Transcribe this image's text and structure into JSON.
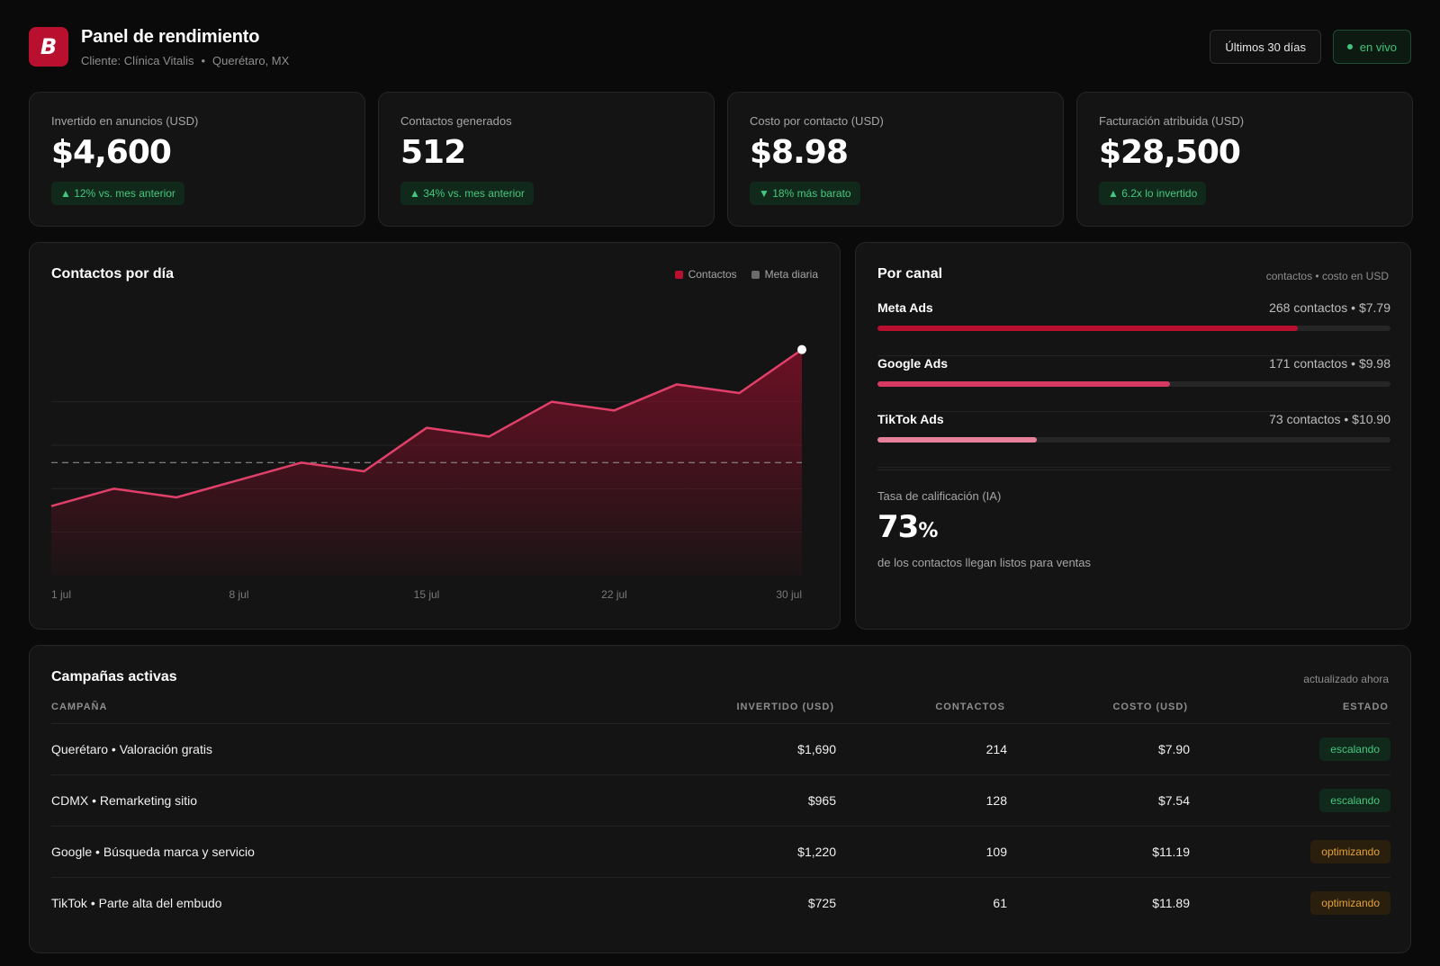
{
  "header": {
    "logo_letter": "B",
    "title": "Panel de rendimiento",
    "client": "Cliente: Clínica Vitalis",
    "location": "Querétaro, MX",
    "range_button": "Últimos 30 días",
    "live_label": "en vivo"
  },
  "kpis": [
    {
      "label": "Invertido en anuncios (USD)",
      "value": "$4,600",
      "badge": "▲ 12% vs. mes anterior"
    },
    {
      "label": "Contactos generados",
      "value": "512",
      "badge": "▲ 34% vs. mes anterior"
    },
    {
      "label": "Costo por contacto (USD)",
      "value": "$8.98",
      "badge": "▼ 18% más barato"
    },
    {
      "label": "Facturación atribuida (USD)",
      "value": "$28,500",
      "badge": "▲ 6.2x lo invertido"
    }
  ],
  "chart": {
    "title": "Contactos por día",
    "legend": [
      {
        "label": "Contactos",
        "color": "#b8102e"
      },
      {
        "label": "Meta diaria",
        "color": "#6b6b6b"
      }
    ]
  },
  "chart_data": {
    "type": "area",
    "title": "Contactos por día",
    "x": [
      "1 jul",
      "3 jul",
      "6 jul",
      "8 jul",
      "10 jul",
      "13 jul",
      "15 jul",
      "18 jul",
      "20 jul",
      "22 jul",
      "25 jul",
      "27 jul",
      "30 jul"
    ],
    "x_ticks": [
      "1 jul",
      "8 jul",
      "15 jul",
      "22 jul",
      "30 jul"
    ],
    "series": [
      {
        "name": "Contactos",
        "values": [
          8,
          10,
          9,
          11,
          13,
          12,
          17,
          16,
          20,
          19,
          22,
          21,
          26
        ]
      }
    ],
    "target": {
      "name": "Meta diaria",
      "value": 13
    },
    "ylim": [
      0,
      30
    ],
    "grid": true,
    "legend_position": "top-right"
  },
  "channels": {
    "title": "Por canal",
    "note": "contactos • costo en USD",
    "items": [
      {
        "name": "Meta Ads",
        "meta": "268 contactos • $7.79",
        "share": 0.82,
        "color": "#b8102e"
      },
      {
        "name": "Google Ads",
        "meta": "171 contactos • $9.98",
        "share": 0.57,
        "color": "#d63a63"
      },
      {
        "name": "TikTok Ads",
        "meta": "73 contactos • $10.90",
        "share": 0.31,
        "color": "#e6809b"
      }
    ],
    "qualification": {
      "label": "Tasa de calificación (IA)",
      "value": "73",
      "unit": "%",
      "desc": "de los contactos llegan listos para ventas"
    }
  },
  "campaigns": {
    "title": "Campañas activas",
    "note": "actualizado ahora",
    "columns": [
      "CAMPAÑA",
      "INVERTIDO (USD)",
      "CONTACTOS",
      "COSTO (USD)",
      "ESTADO"
    ],
    "rows": [
      {
        "name": "Querétaro • Valoración gratis",
        "spent": "$1,690",
        "contacts": "214",
        "cost": "$7.90",
        "status": "escalando",
        "status_type": "green"
      },
      {
        "name": "CDMX • Remarketing sitio",
        "spent": "$965",
        "contacts": "128",
        "cost": "$7.54",
        "status": "escalando",
        "status_type": "green"
      },
      {
        "name": "Google • Búsqueda marca y servicio",
        "spent": "$1,220",
        "contacts": "109",
        "cost": "$11.19",
        "status": "optimizando",
        "status_type": "amber"
      },
      {
        "name": "TikTok • Parte alta del embudo",
        "spent": "$725",
        "contacts": "61",
        "cost": "$11.89",
        "status": "optimizando",
        "status_type": "amber"
      }
    ]
  }
}
